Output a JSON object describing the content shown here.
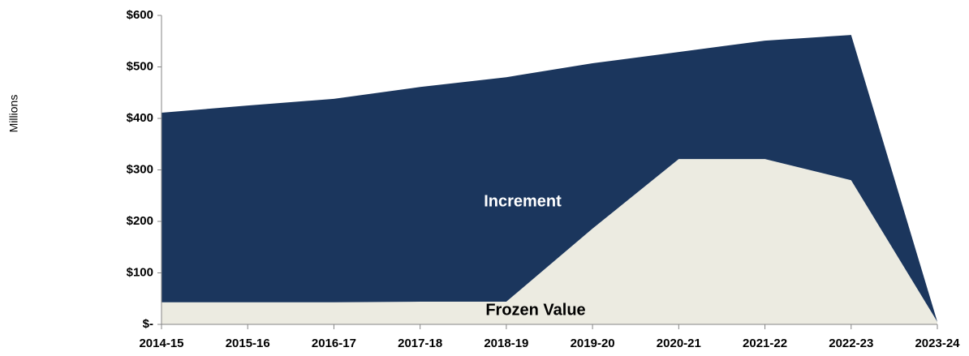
{
  "chart_data": {
    "type": "stacked_area",
    "y_label": "Millions",
    "categories": [
      "2014-15",
      "2015-16",
      "2016-17",
      "2017-18",
      "2018-19",
      "2019-20",
      "2020-21",
      "2021-22",
      "2022-23",
      "2023-24"
    ],
    "series": [
      {
        "name": "Frozen Value",
        "color": "#ecebe1",
        "values": [
          43,
          43,
          43,
          44,
          44,
          186,
          321,
          321,
          280,
          5
        ]
      },
      {
        "name": "Increment",
        "color": "#1b365d",
        "values": [
          368,
          382,
          395,
          417,
          436,
          321,
          208,
          230,
          282,
          0
        ]
      }
    ],
    "ylim": [
      0,
      600
    ],
    "yticks": [
      {
        "value": 0,
        "label": "$-"
      },
      {
        "value": 100,
        "label": "$100"
      },
      {
        "value": 200,
        "label": "$200"
      },
      {
        "value": 300,
        "label": "$300"
      },
      {
        "value": 400,
        "label": "$400"
      },
      {
        "value": 500,
        "label": "$500"
      },
      {
        "value": 600,
        "label": "$600"
      }
    ]
  }
}
